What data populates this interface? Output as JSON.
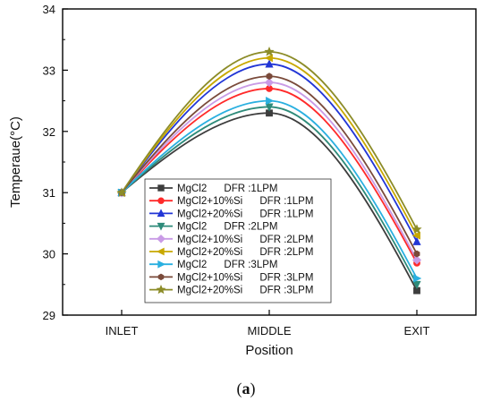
{
  "chart_data": {
    "type": "line",
    "xlabel": "Position",
    "ylabel": "Temperaue(°C)",
    "categories": [
      "INLET",
      "MIDDLE",
      "EXIT"
    ],
    "ylim": [
      29,
      34
    ],
    "yticks": [
      29,
      30,
      31,
      32,
      33,
      34
    ],
    "legend_position": "inside-lower-left",
    "grid": false,
    "series": [
      {
        "name": "MgCl2      DFR :1LPM",
        "values": [
          31.0,
          32.3,
          29.4
        ],
        "color": "#3d3d3d",
        "marker": "square"
      },
      {
        "name": "MgCl2+10%Si      DFR :1LPM",
        "values": [
          31.0,
          32.7,
          29.85
        ],
        "color": "#ff2a2a",
        "marker": "circle"
      },
      {
        "name": "MgCl2+20%Si      DFR :1LPM",
        "values": [
          31.0,
          33.1,
          30.2
        ],
        "color": "#2236d6",
        "marker": "triangle-up"
      },
      {
        "name": "MgCl2      DFR :2LPM",
        "values": [
          31.0,
          32.4,
          29.5
        ],
        "color": "#2e8b7a",
        "marker": "triangle-down"
      },
      {
        "name": "MgCl2+10%Si      DFR :2LPM",
        "values": [
          31.0,
          32.8,
          29.9
        ],
        "color": "#c99be6",
        "marker": "diamond"
      },
      {
        "name": "MgCl2+20%Si      DFR :2LPM",
        "values": [
          31.0,
          33.2,
          30.3
        ],
        "color": "#c8a800",
        "marker": "triangle-left"
      },
      {
        "name": "MgCl2      DFR :3LPM",
        "values": [
          31.0,
          32.5,
          29.6
        ],
        "color": "#2ab0e0",
        "marker": "triangle-right"
      },
      {
        "name": "MgCl2+10%Si      DFR :3LPM",
        "values": [
          31.0,
          32.9,
          30.0
        ],
        "color": "#7a4a3a",
        "marker": "hexagon"
      },
      {
        "name": "MgCl2+20%Si      DFR :3LPM",
        "values": [
          31.0,
          33.3,
          30.4
        ],
        "color": "#8c8c28",
        "marker": "star"
      }
    ]
  },
  "caption": "(a)"
}
